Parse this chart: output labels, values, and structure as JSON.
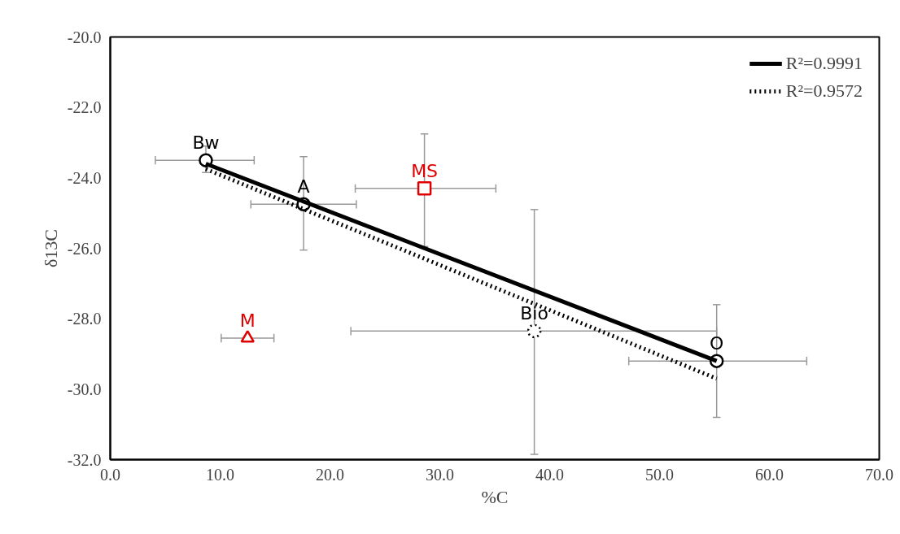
{
  "chart_data": {
    "type": "scatter",
    "xlabel": "%C",
    "ylabel": "δ13C",
    "xlim": [
      0,
      70
    ],
    "ylim": [
      -32,
      -20
    ],
    "xticks": [
      {
        "value": 0,
        "label": "0.0"
      },
      {
        "value": 10,
        "label": "10.0"
      },
      {
        "value": 20,
        "label": "20.0"
      },
      {
        "value": 30,
        "label": "30.0"
      },
      {
        "value": 40,
        "label": "40.0"
      },
      {
        "value": 50,
        "label": "50.0"
      },
      {
        "value": 60,
        "label": "60.0"
      },
      {
        "value": 70,
        "label": "70.0"
      }
    ],
    "yticks": [
      {
        "value": -32,
        "label": "-32.0"
      },
      {
        "value": -30,
        "label": "-30.0"
      },
      {
        "value": -28,
        "label": "-28.0"
      },
      {
        "value": -26,
        "label": "-26.0"
      },
      {
        "value": -24,
        "label": "-24.0"
      },
      {
        "value": -22,
        "label": "-22.0"
      },
      {
        "value": -20,
        "label": "-20.0"
      }
    ],
    "grid": false,
    "legend": "top right",
    "series": [
      {
        "name": "Bw",
        "color": "#000000",
        "marker": "circle",
        "x": [
          8.7
        ],
        "values": [
          -23.5
        ],
        "errors": [
          [
            -23.85,
            -23.1
          ]
        ],
        "xerrors": [
          [
            4.1,
            13.1
          ]
        ]
      },
      {
        "name": "A",
        "color": "#000000",
        "marker": "circle",
        "x": [
          17.6
        ],
        "values": [
          -24.75
        ],
        "errors": [
          [
            -26.05,
            -23.4
          ]
        ],
        "xerrors": [
          [
            12.8,
            22.4
          ]
        ]
      },
      {
        "name": "MS",
        "color": "#e00000",
        "marker": "square",
        "x": [
          28.6
        ],
        "values": [
          -24.3
        ],
        "errors": [
          [
            -25.95,
            -22.75
          ]
        ],
        "xerrors": [
          [
            22.3,
            35.1
          ]
        ]
      },
      {
        "name": "M",
        "color": "#e00000",
        "marker": "triangle",
        "x": [
          12.5
        ],
        "values": [
          -28.55
        ],
        "xerrors": [
          [
            10.1,
            14.9
          ]
        ]
      },
      {
        "name": "Bio",
        "color": "#000000",
        "marker": "circle",
        "line_style": "dotted",
        "x": [
          38.6
        ],
        "values": [
          -28.35
        ],
        "errors": [
          [
            -31.85,
            -24.9
          ]
        ],
        "xerrors": [
          [
            21.9,
            55.2
          ]
        ]
      },
      {
        "name": "O",
        "color": "#000000",
        "marker": "circle",
        "x": [
          55.2
        ],
        "values": [
          -29.2
        ],
        "errors": [
          [
            -30.8,
            -27.6
          ]
        ],
        "xerrors": [
          [
            47.2,
            63.4
          ]
        ]
      },
      {
        "name": "R²=0.9991",
        "type": "line",
        "color": "#000000",
        "line_style": "solid",
        "marker": "none",
        "x": [
          8.7,
          55.2
        ],
        "values": [
          -23.6,
          -29.2
        ]
      },
      {
        "name": "R²=0.9572",
        "type": "line",
        "color": "#000000",
        "line_style": "dotted",
        "marker": "none",
        "x": [
          8.7,
          55.2
        ],
        "values": [
          -23.75,
          -29.7
        ]
      }
    ]
  }
}
